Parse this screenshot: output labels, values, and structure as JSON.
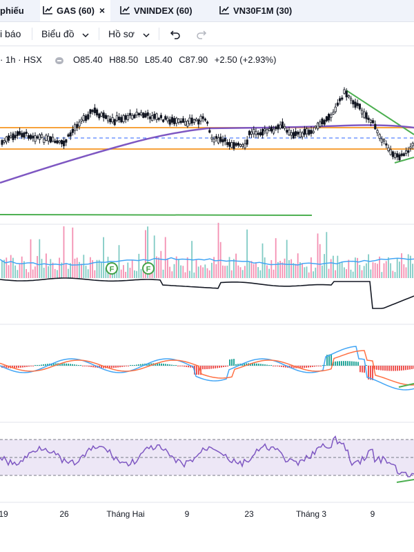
{
  "tabs": [
    {
      "label": "phiếu",
      "active": false
    },
    {
      "label": "GAS (60)",
      "active": true,
      "close": "×"
    },
    {
      "label": "VNINDEX (60)",
      "active": false
    },
    {
      "label": "VN30F1M (30)",
      "active": false
    }
  ],
  "toolbar": {
    "report_label": "i báo",
    "chart_label": "Biểu đồ",
    "profile_label": "Hồ sơ"
  },
  "legend": {
    "interval": "1h",
    "exchange": "HSX",
    "separator": "·",
    "open": "O85.40",
    "high": "H88.50",
    "low": "L85.40",
    "close": "C87.90",
    "change": "+2.50 (+2.93%)"
  },
  "x_axis_labels": [
    "19",
    "26",
    "Tháng Hai",
    "9",
    "23",
    "Tháng 3",
    "9"
  ],
  "indicator_markers": [
    "F",
    "F"
  ],
  "colors": {
    "up": "#26a69a",
    "down": "#ef5350",
    "candle": "#131722",
    "ma": "#7e57c2",
    "level": "#f7a13a",
    "trend": "#4caf50",
    "volume_ma": "#42a5f5",
    "macd": "#42a5f5",
    "signal": "#ff7043",
    "rsi": "#7e57c2",
    "rsi_band": "#ede7f6"
  }
}
